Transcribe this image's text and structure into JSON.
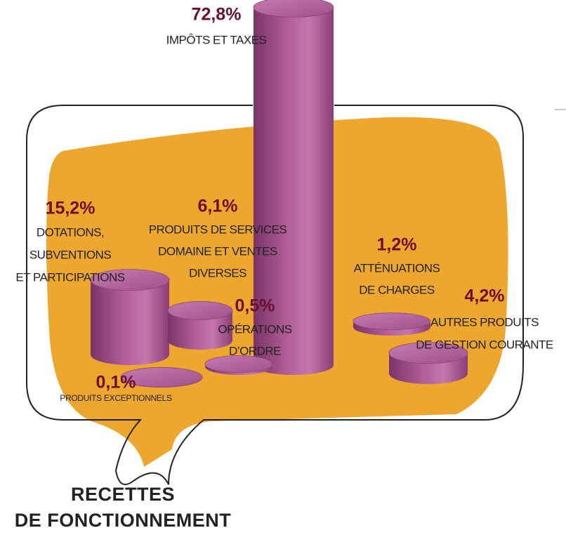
{
  "chart_data": {
    "type": "cylinder",
    "title": [
      "RECETTES",
      "DE FONCTIONNEMENT"
    ],
    "color": "#a8528f",
    "categories": [
      [
        "IMPÔTS ET TAXES"
      ],
      [
        "DOTATIONS,",
        "SUBVENTIONS",
        "ET PARTICIPATIONS"
      ],
      [
        "PRODUITS DE SERVICES",
        "DOMAINE ET VENTES",
        "DIVERSES"
      ],
      [
        "OPÉRATIONS",
        "D’ORDRE"
      ],
      [
        "PRODUITS EXCEPTIONNELS"
      ],
      [
        "ATTÉNUATIONS",
        "DE CHARGES"
      ],
      [
        "AUTRES PRODUITS",
        "DE GESTION COURANTE"
      ]
    ],
    "values": [
      72.8,
      15.2,
      6.1,
      0.5,
      0.1,
      1.2,
      4.2
    ],
    "value_labels": [
      "72,8%",
      "15,2%",
      "6,1%",
      "0,5%",
      "0,1%",
      "1,2%",
      "4,2%"
    ]
  }
}
